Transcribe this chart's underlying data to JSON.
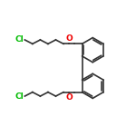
{
  "bg_color": "#ffffff",
  "bond_color": "#333333",
  "cl_color": "#00bb00",
  "o_color": "#ee0000",
  "lw": 1.2,
  "figsize": [
    1.5,
    1.5
  ],
  "dpi": 100,
  "cl_label": "Cl",
  "o_label": "O",
  "cl_fontsize": 6.5,
  "o_fontsize": 6.5,
  "ring_r": 0.092,
  "r1cx": 0.685,
  "r1cy": 0.635,
  "r2cx": 0.685,
  "r2cy": 0.365,
  "zz": 0.03,
  "seg": 0.058
}
